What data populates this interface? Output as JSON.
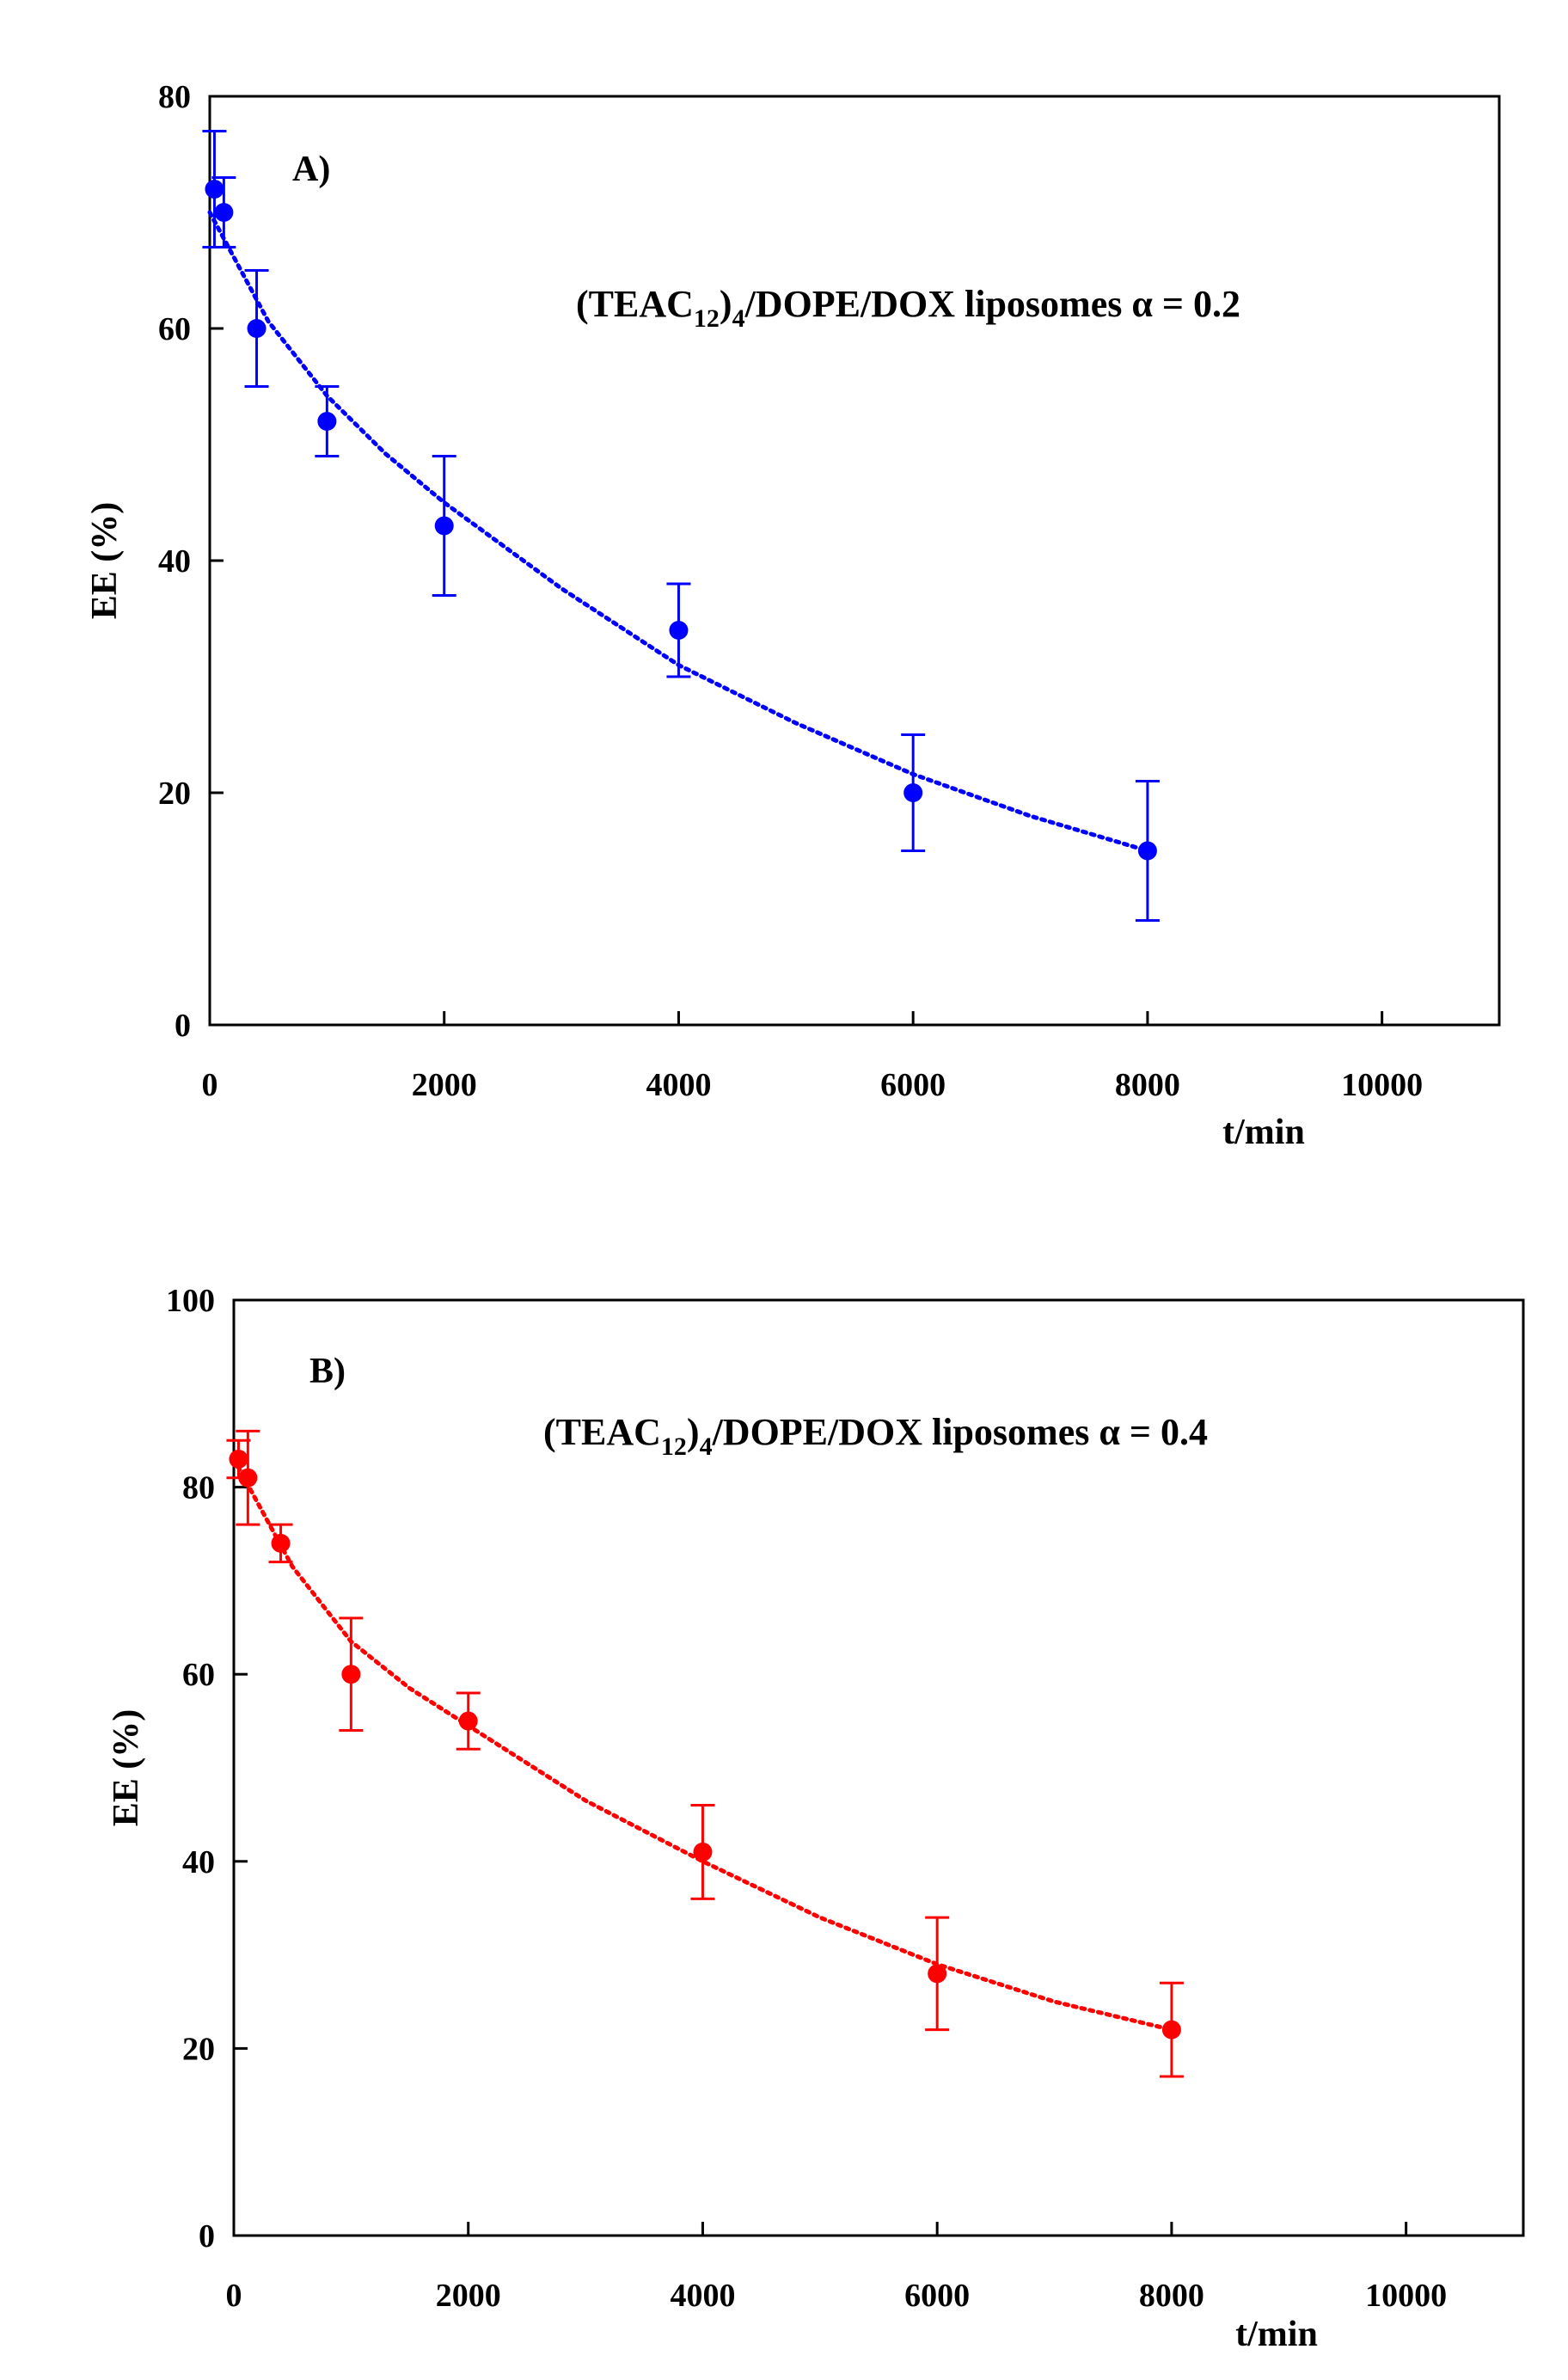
{
  "chart_data": [
    {
      "type": "scatter",
      "panel_label": "A)",
      "annotation": {
        "prefix": "(TEAC",
        "sub1": "12",
        "mid": ")",
        "sub2": "4",
        "suffix": "/DOPE/DOX liposomes ",
        "greek": "α",
        "value": " = 0.2"
      },
      "xlabel": "t/min",
      "ylabel": "EE (%)",
      "xlim": [
        0,
        11000
      ],
      "ylim": [
        0,
        80
      ],
      "xticks": [
        0,
        2000,
        4000,
        6000,
        8000,
        10000
      ],
      "yticks": [
        0,
        20,
        40,
        60,
        80
      ],
      "color": "#0000ff",
      "series": [
        {
          "name": "EE",
          "x": [
            40,
            120,
            400,
            1000,
            2000,
            4000,
            6000,
            8000
          ],
          "y": [
            72,
            70,
            60,
            52,
            43,
            34,
            20,
            15
          ],
          "err": [
            5,
            3,
            5,
            3,
            6,
            4,
            5,
            6
          ]
        }
      ],
      "fit": {
        "style": "dotted",
        "x": [
          0,
          500,
          1000,
          1500,
          2000,
          3000,
          4000,
          5000,
          6000,
          7000,
          8000
        ],
        "y": [
          70,
          60.6,
          54.2,
          49.2,
          45.0,
          37.6,
          31.0,
          26.0,
          21.6,
          18.0,
          15.0
        ]
      }
    },
    {
      "type": "scatter",
      "panel_label": "B)",
      "annotation": {
        "prefix": "(TEAC",
        "sub1": "12",
        "mid": ")",
        "sub2": "4",
        "suffix": "/DOPE/DOX liposomes ",
        "greek": "α",
        "value": " = 0.4"
      },
      "xlabel": "t/min",
      "ylabel": "EE (%)",
      "xlim": [
        0,
        11000
      ],
      "ylim": [
        0,
        100
      ],
      "xticks": [
        0,
        2000,
        4000,
        6000,
        8000,
        10000
      ],
      "yticks": [
        0,
        20,
        40,
        60,
        80,
        100
      ],
      "color": "#ff0000",
      "series": [
        {
          "name": "EE",
          "x": [
            40,
            120,
            400,
            1000,
            2000,
            4000,
            6000,
            8000
          ],
          "y": [
            83,
            81,
            74,
            60,
            55,
            41,
            28,
            22
          ],
          "err": [
            2,
            5,
            2,
            6,
            3,
            5,
            6,
            5
          ]
        }
      ],
      "fit": {
        "style": "dotted",
        "x": [
          0,
          500,
          1000,
          1500,
          2000,
          3000,
          4000,
          5000,
          6000,
          7000,
          8000
        ],
        "y": [
          83,
          71.5,
          63.5,
          58.5,
          54.5,
          46.5,
          40.0,
          34.0,
          29.0,
          25.0,
          22.0
        ]
      }
    }
  ]
}
